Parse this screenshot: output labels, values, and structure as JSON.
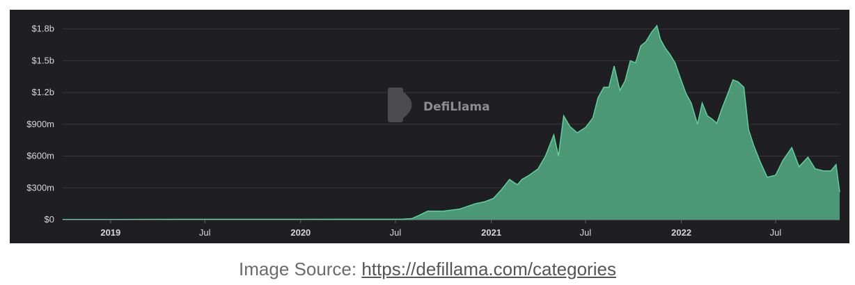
{
  "chart_data": {
    "type": "area",
    "title": "",
    "xlabel": "",
    "ylabel": "",
    "watermark": "DefiLlama",
    "colors": {
      "background": "#1f1f23",
      "fill": "#4f9f7b",
      "line": "#5fd19a",
      "grid": "#36363b"
    },
    "ylim": [
      0,
      1850000000
    ],
    "xlim": [
      "2018-10-01",
      "2022-11-01"
    ],
    "grid": true,
    "y_ticks": [
      {
        "value": 0,
        "label": "$0"
      },
      {
        "value": 300000000,
        "label": "$300m"
      },
      {
        "value": 600000000,
        "label": "$600m"
      },
      {
        "value": 900000000,
        "label": "$900m"
      },
      {
        "value": 1200000000,
        "label": "$1.2b"
      },
      {
        "value": 1500000000,
        "label": "$1.5b"
      },
      {
        "value": 1800000000,
        "label": "$1.8b"
      }
    ],
    "x_ticks": [
      {
        "date": "2019-01-01",
        "label": "2019",
        "major": true
      },
      {
        "date": "2019-07-01",
        "label": "Jul",
        "major": false
      },
      {
        "date": "2020-01-01",
        "label": "2020",
        "major": true
      },
      {
        "date": "2020-07-01",
        "label": "Jul",
        "major": false
      },
      {
        "date": "2021-01-01",
        "label": "2021",
        "major": true
      },
      {
        "date": "2021-07-01",
        "label": "Jul",
        "major": false
      },
      {
        "date": "2022-01-01",
        "label": "2022",
        "major": true
      },
      {
        "date": "2022-07-01",
        "label": "Jul",
        "major": false
      }
    ],
    "series": [
      {
        "x": [
          "2018-10-01",
          "2019-01-01",
          "2019-07-01",
          "2020-01-01",
          "2020-06-01",
          "2020-07-15",
          "2020-08-01",
          "2020-08-15",
          "2020-09-01",
          "2020-09-15",
          "2020-10-01",
          "2020-11-01",
          "2020-12-01",
          "2020-12-20",
          "2021-01-05",
          "2021-01-20",
          "2021-02-05",
          "2021-02-20",
          "2021-03-01",
          "2021-03-15",
          "2021-04-01",
          "2021-04-15",
          "2021-05-01",
          "2021-05-10",
          "2021-05-20",
          "2021-06-01",
          "2021-06-15",
          "2021-07-01",
          "2021-07-15",
          "2021-07-25",
          "2021-08-05",
          "2021-08-15",
          "2021-08-25",
          "2021-09-05",
          "2021-09-15",
          "2021-09-25",
          "2021-10-05",
          "2021-10-15",
          "2021-10-25",
          "2021-11-05",
          "2021-11-15",
          "2021-11-22",
          "2021-12-01",
          "2021-12-10",
          "2021-12-20",
          "2022-01-01",
          "2022-01-10",
          "2022-01-20",
          "2022-02-01",
          "2022-02-10",
          "2022-02-20",
          "2022-03-01",
          "2022-03-10",
          "2022-03-20",
          "2022-04-01",
          "2022-04-10",
          "2022-04-20",
          "2022-05-01",
          "2022-05-10",
          "2022-05-20",
          "2022-06-01",
          "2022-06-15",
          "2022-07-01",
          "2022-07-15",
          "2022-08-01",
          "2022-08-15",
          "2022-09-01",
          "2022-09-15",
          "2022-10-01",
          "2022-10-15",
          "2022-10-25",
          "2022-11-01"
        ],
        "values": [
          2000000,
          2000000,
          3000000,
          3000000,
          4000000,
          5000000,
          10000000,
          40000000,
          80000000,
          80000000,
          80000000,
          100000000,
          150000000,
          170000000,
          200000000,
          280000000,
          380000000,
          330000000,
          380000000,
          420000000,
          480000000,
          600000000,
          800000000,
          600000000,
          980000000,
          880000000,
          820000000,
          870000000,
          960000000,
          1150000000,
          1250000000,
          1250000000,
          1450000000,
          1220000000,
          1310000000,
          1500000000,
          1480000000,
          1640000000,
          1680000000,
          1770000000,
          1830000000,
          1700000000,
          1620000000,
          1560000000,
          1480000000,
          1310000000,
          1190000000,
          1100000000,
          900000000,
          1100000000,
          980000000,
          950000000,
          910000000,
          1050000000,
          1200000000,
          1320000000,
          1300000000,
          1250000000,
          850000000,
          700000000,
          550000000,
          400000000,
          420000000,
          560000000,
          680000000,
          500000000,
          590000000,
          480000000,
          460000000,
          460000000,
          520000000,
          260000000
        ]
      }
    ]
  },
  "caption": {
    "prefix": "Image Source: ",
    "link": "https://defillama.com/categories"
  }
}
